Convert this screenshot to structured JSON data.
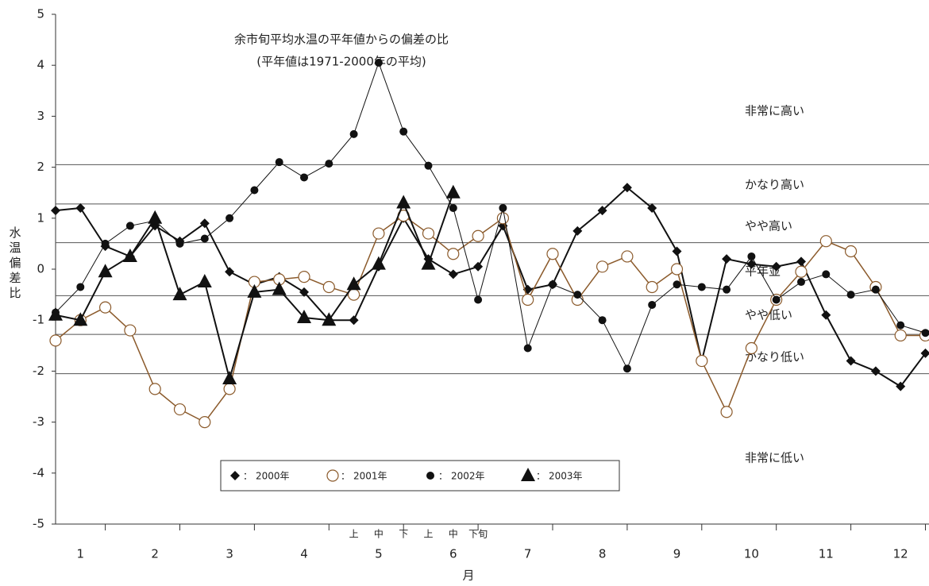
{
  "chart_data": {
    "type": "line",
    "title": "余市旬平均水温の平年値からの偏差の比",
    "subtitle": "(平年値は1971-2000年の平均)",
    "y_label": "水温偏差比",
    "x_label": "月",
    "months": [
      "1",
      "2",
      "3",
      "4",
      "5",
      "6",
      "7",
      "8",
      "9",
      "10",
      "11",
      "12"
    ],
    "categories": [
      null,
      null,
      null,
      null,
      null,
      null,
      null,
      null,
      null,
      null,
      null,
      null,
      "上",
      "中",
      "下",
      "上",
      "中",
      "下旬",
      null,
      null,
      null,
      null,
      null,
      null,
      null,
      null,
      null,
      null,
      null,
      null,
      null,
      null,
      null,
      null,
      null,
      null
    ],
    "ylim": [
      -5,
      5
    ],
    "yticks": [
      -5,
      -4,
      -3,
      -2,
      -1,
      0,
      1,
      2,
      3,
      4,
      5
    ],
    "ref_lines": [
      2.05,
      1.28,
      0.52,
      -0.52,
      -1.28,
      -2.05
    ],
    "classes": [
      "非常に高い",
      "かなり高い",
      "やや高い",
      "平年並",
      "やや低い",
      "かなり低い",
      "非常に低い"
    ],
    "legend_separator": "：",
    "series": [
      {
        "name": "2000年",
        "marker": "diamond",
        "color": "#111111",
        "width": 2,
        "values": [
          1.15,
          1.2,
          0.45,
          0.25,
          0.85,
          0.55,
          0.9,
          -0.05,
          -0.3,
          -0.15,
          -0.45,
          -1.0,
          -1.0,
          0.05,
          1.0,
          0.2,
          -0.1,
          0.05,
          0.85,
          -0.4,
          -0.3,
          0.75,
          1.15,
          1.6,
          1.2,
          0.35,
          -1.8,
          0.2,
          0.1,
          0.05,
          0.15,
          -0.9,
          -1.8,
          -2.0,
          -2.3,
          -1.65
        ]
      },
      {
        "name": "2001年",
        "marker": "open-circle",
        "color": "#8b5a2b",
        "width": 1.5,
        "values": [
          -1.4,
          -1.0,
          -0.75,
          -1.2,
          -2.35,
          -2.75,
          -3.0,
          -2.35,
          -0.25,
          -0.2,
          -0.15,
          -0.35,
          -0.5,
          0.7,
          1.05,
          0.7,
          0.3,
          0.65,
          1.0,
          -0.6,
          0.3,
          -0.6,
          0.05,
          0.25,
          -0.35,
          0.0,
          -1.8,
          -2.8,
          -1.55,
          -0.6,
          -0.05,
          0.55,
          0.35,
          -0.35,
          -1.3,
          -1.3
        ]
      },
      {
        "name": "2002年",
        "marker": "circle",
        "color": "#111111",
        "width": 1,
        "values": [
          -0.85,
          -0.35,
          0.5,
          0.85,
          0.95,
          0.5,
          0.6,
          1.0,
          1.55,
          2.1,
          1.8,
          2.07,
          2.65,
          4.05,
          2.7,
          2.03,
          1.2,
          -0.6,
          1.2,
          -1.55,
          -0.3,
          -0.5,
          -1.0,
          -1.95,
          -0.7,
          -0.3,
          -0.35,
          -0.4,
          0.25,
          -0.6,
          -0.25,
          -0.1,
          -0.5,
          -0.4,
          -1.1,
          -1.25
        ]
      },
      {
        "name": "2003年",
        "marker": "triangle",
        "color": "#111111",
        "width": 2,
        "values": [
          -0.9,
          -1.0,
          -0.05,
          0.25,
          1.0,
          -0.5,
          -0.25,
          -2.15,
          -0.45,
          -0.4,
          -0.95,
          -1.0,
          -0.3,
          0.1,
          1.3,
          0.1,
          1.5,
          null,
          null,
          null,
          null,
          null,
          null,
          null,
          null,
          null,
          null,
          null,
          null,
          null,
          null,
          null,
          null,
          null,
          null,
          null
        ]
      }
    ]
  }
}
